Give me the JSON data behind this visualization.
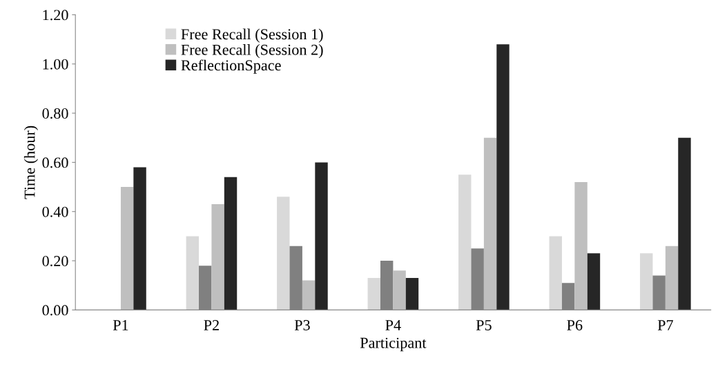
{
  "chart_data": {
    "type": "bar",
    "xlabel": "Participant",
    "ylabel": "Time (hour)",
    "categories": [
      "P1",
      "P2",
      "P3",
      "P4",
      "P5",
      "P6",
      "P7"
    ],
    "series": [
      {
        "name": "Free Recall (Session 1)",
        "color": "#d9d9d9",
        "values": [
          0,
          0.3,
          0.46,
          0.13,
          0.55,
          0.3,
          0.23
        ]
      },
      {
        "color": "#808080",
        "values": [
          0,
          0.18,
          0.26,
          0.2,
          0.25,
          0.11,
          0.14
        ]
      },
      {
        "name": "Free Recall (Session 2)",
        "color": "#bfbfbf",
        "values": [
          0.5,
          0.43,
          0.12,
          0.16,
          0.7,
          0.52,
          0.26
        ]
      },
      {
        "name": "ReflectionSpace",
        "color": "#262626",
        "values": [
          0.58,
          0.54,
          0.6,
          0.13,
          1.08,
          0.23,
          0.7
        ]
      }
    ],
    "ylim": [
      0,
      1.2
    ],
    "yticks": [
      {
        "value": 0,
        "label": "0.00"
      },
      {
        "value": 0.2,
        "label": "0.20"
      },
      {
        "value": 0.4,
        "label": "0.40"
      },
      {
        "value": 0.6,
        "label": "0.60"
      },
      {
        "value": 0.8,
        "label": "0.80"
      },
      {
        "value": 1.0,
        "label": "1.00"
      },
      {
        "value": 1.2,
        "label": "1.20"
      }
    ],
    "grid": false,
    "legend": "top left"
  }
}
